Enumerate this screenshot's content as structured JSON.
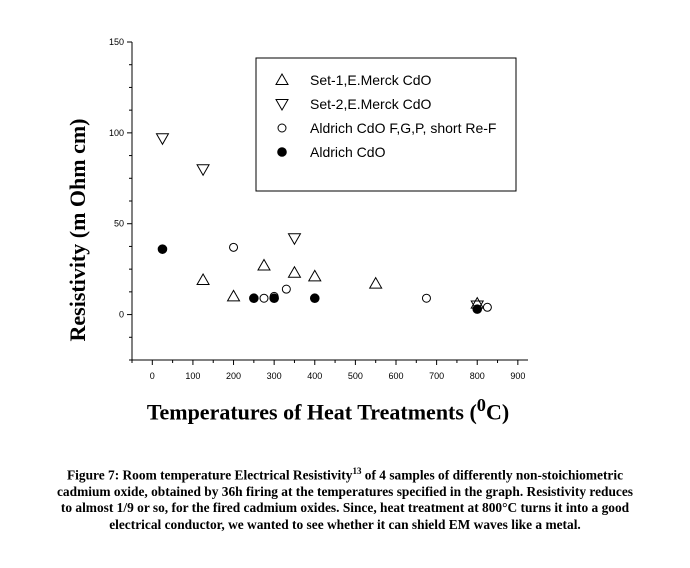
{
  "chart_data": {
    "type": "scatter",
    "xlabel_prefix": "Temperatures of Heat Treatments (",
    "xlabel_sup": "0",
    "xlabel_suffix": "C)",
    "ylabel": "Resistivity (m Ohm cm)",
    "xlim": [
      -50,
      925
    ],
    "ylim": [
      -25,
      150
    ],
    "xticks": [
      0,
      100,
      200,
      300,
      400,
      500,
      600,
      700,
      800,
      900
    ],
    "yticks": [
      0,
      50,
      100,
      150
    ],
    "grid": false,
    "legend_position": "top-right",
    "series": [
      {
        "name": "Set-1,E.Merck CdO",
        "marker": "triangle-up",
        "points": [
          [
            125,
            19
          ],
          [
            200,
            10
          ],
          [
            275,
            27
          ],
          [
            350,
            23
          ],
          [
            400,
            21
          ],
          [
            550,
            17
          ],
          [
            800,
            6
          ]
        ]
      },
      {
        "name": "Set-2,E.Merck CdO",
        "marker": "triangle-down",
        "points": [
          [
            25,
            97
          ],
          [
            125,
            80
          ],
          [
            350,
            42
          ],
          [
            800,
            5
          ]
        ]
      },
      {
        "name": "Aldrich CdO F,G,P, short Re-F",
        "marker": "circle-open",
        "points": [
          [
            200,
            37
          ],
          [
            275,
            9
          ],
          [
            300,
            10
          ],
          [
            330,
            14
          ],
          [
            675,
            9
          ],
          [
            825,
            4
          ]
        ]
      },
      {
        "name": "Aldrich CdO",
        "marker": "circle-filled",
        "points": [
          [
            25,
            36
          ],
          [
            250,
            9
          ],
          [
            300,
            9
          ],
          [
            400,
            9
          ],
          [
            800,
            3
          ]
        ]
      }
    ]
  },
  "caption": {
    "prefix": "Figure 7: Room temperature Electrical Resistivity",
    "sup": "13",
    "text": " of 4 samples of differently non-stoichiometric cadmium oxide, obtained by 36h firing at the temperatures specified in the graph.  Resistivity reduces to almost 1/9 or so, for the fired cadmium oxides. Since, heat treatment at 800°C turns it into a good electrical conductor, we wanted to see whether it can shield EM waves like a metal."
  }
}
